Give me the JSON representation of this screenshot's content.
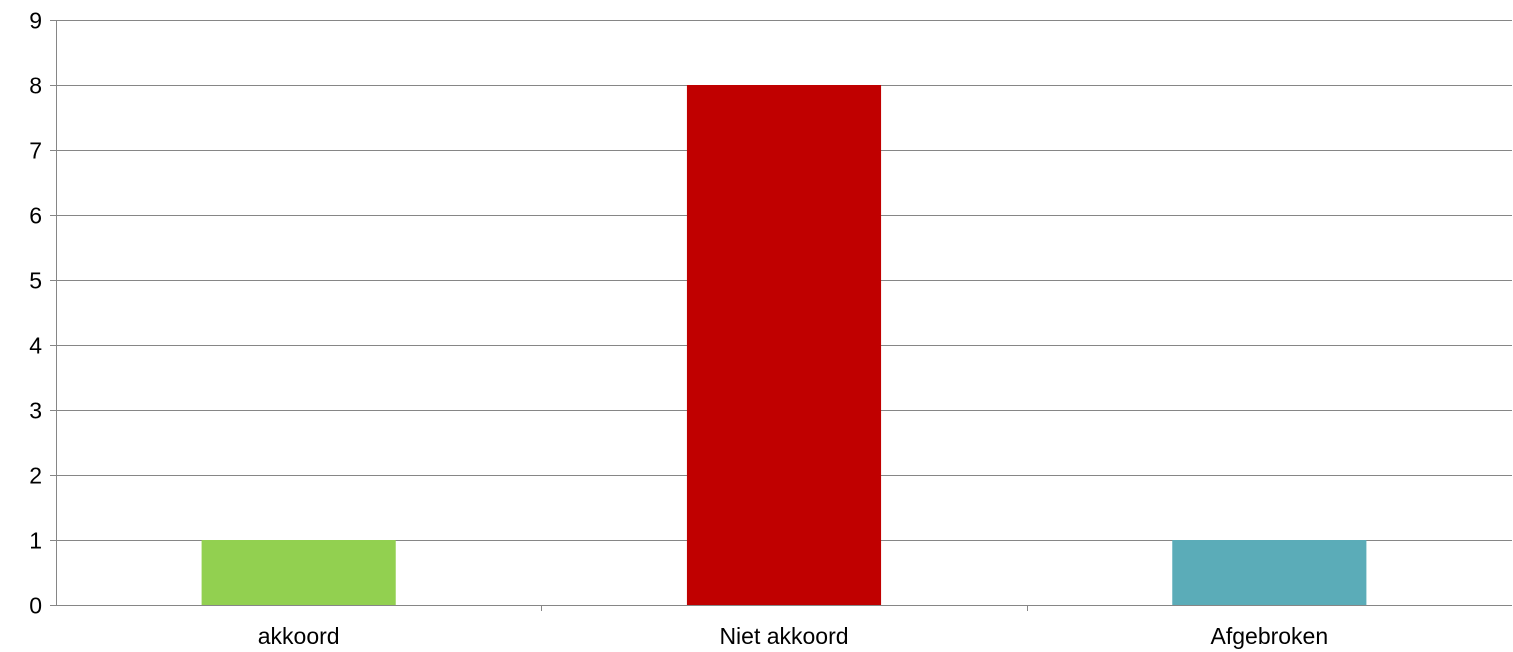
{
  "chart_data": {
    "type": "bar",
    "title": "",
    "xlabel": "",
    "ylabel": "",
    "categories": [
      "akkoord",
      "Niet akkoord",
      "Afgebroken"
    ],
    "values": [
      1,
      8,
      1
    ],
    "colors": [
      "#92D050",
      "#C00000",
      "#5BACB8"
    ],
    "ylim": [
      0,
      9
    ],
    "yticks": [
      0,
      1,
      2,
      3,
      4,
      5,
      6,
      7,
      8,
      9
    ],
    "grid": true,
    "legend": "none"
  }
}
